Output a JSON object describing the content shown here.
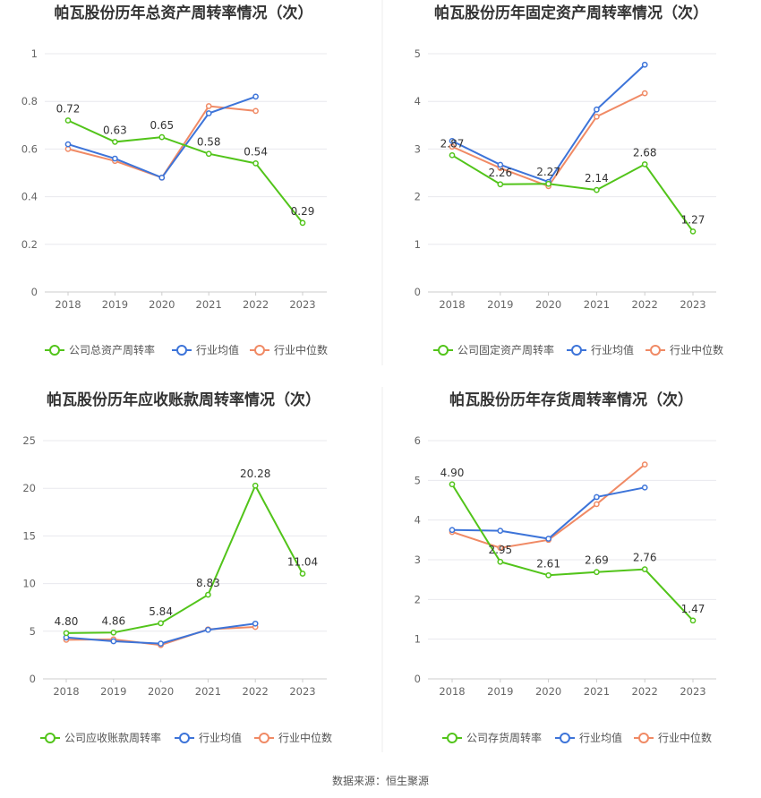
{
  "source": "数据来源：恒生聚源",
  "chart_data": [
    {
      "type": "line",
      "title": "帕瓦股份历年总资产周转率情况（次）",
      "categories": [
        "2018",
        "2019",
        "2020",
        "2021",
        "2022",
        "2023"
      ],
      "ylim": [
        0,
        1
      ],
      "yticks": [
        "0",
        "0.2",
        "0.4",
        "0.6",
        "0.8",
        "1"
      ],
      "grid": true,
      "legend": "bottom",
      "series": [
        {
          "name": "公司总资产周转率",
          "color": "#52c41a",
          "values": [
            0.72,
            0.63,
            0.65,
            0.58,
            0.54,
            0.29
          ],
          "labels": [
            "0.72",
            "0.63",
            "0.65",
            "0.58",
            "0.54",
            "0.29"
          ]
        },
        {
          "name": "行业均值",
          "color": "#3d74d9",
          "values": [
            0.62,
            0.56,
            0.48,
            0.75,
            0.82,
            null
          ]
        },
        {
          "name": "行业中位数",
          "color": "#f08a65",
          "values": [
            0.6,
            0.55,
            0.48,
            0.78,
            0.76,
            null
          ]
        }
      ]
    },
    {
      "type": "line",
      "title": "帕瓦股份历年固定资产周转率情况（次）",
      "categories": [
        "2018",
        "2019",
        "2020",
        "2021",
        "2022",
        "2023"
      ],
      "ylim": [
        0,
        5
      ],
      "yticks": [
        "0",
        "1",
        "2",
        "3",
        "4",
        "5"
      ],
      "grid": true,
      "legend": "bottom",
      "series": [
        {
          "name": "公司固定资产周转率",
          "color": "#52c41a",
          "values": [
            2.87,
            2.26,
            2.27,
            2.14,
            2.68,
            1.27
          ],
          "labels": [
            "2.87",
            "2.26",
            "2.27",
            "2.14",
            "2.68",
            "1.27"
          ]
        },
        {
          "name": "行业均值",
          "color": "#3d74d9",
          "values": [
            3.17,
            2.67,
            2.31,
            3.83,
            4.77,
            null
          ]
        },
        {
          "name": "行业中位数",
          "color": "#f08a65",
          "values": [
            3.05,
            2.6,
            2.22,
            3.68,
            4.17,
            null
          ]
        }
      ]
    },
    {
      "type": "line",
      "title": "帕瓦股份历年应收账款周转率情况（次）",
      "categories": [
        "2018",
        "2019",
        "2020",
        "2021",
        "2022",
        "2023"
      ],
      "ylim": [
        0,
        25
      ],
      "yticks": [
        "0",
        "5",
        "10",
        "15",
        "20",
        "25"
      ],
      "grid": true,
      "legend": "bottom",
      "series": [
        {
          "name": "公司应收账款周转率",
          "color": "#52c41a",
          "values": [
            4.8,
            4.86,
            5.84,
            8.83,
            20.28,
            11.04
          ],
          "labels": [
            "4.80",
            "4.86",
            "5.84",
            "8.83",
            "20.28",
            "11.04"
          ]
        },
        {
          "name": "行业均值",
          "color": "#3d74d9",
          "values": [
            4.35,
            3.95,
            3.7,
            5.15,
            5.8,
            null
          ]
        },
        {
          "name": "行业中位数",
          "color": "#f08a65",
          "values": [
            4.1,
            4.15,
            3.55,
            5.2,
            5.45,
            null
          ]
        }
      ]
    },
    {
      "type": "line",
      "title": "帕瓦股份历年存货周转率情况（次）",
      "categories": [
        "2018",
        "2019",
        "2020",
        "2021",
        "2022",
        "2023"
      ],
      "ylim": [
        0,
        6
      ],
      "yticks": [
        "0",
        "1",
        "2",
        "3",
        "4",
        "5",
        "6"
      ],
      "grid": true,
      "legend": "bottom",
      "series": [
        {
          "name": "公司存货周转率",
          "color": "#52c41a",
          "values": [
            4.9,
            2.95,
            2.61,
            2.69,
            2.76,
            1.47
          ],
          "labels": [
            "4.90",
            "2.95",
            "2.61",
            "2.69",
            "2.76",
            "1.47"
          ]
        },
        {
          "name": "行业均值",
          "color": "#3d74d9",
          "values": [
            3.75,
            3.73,
            3.53,
            4.58,
            4.82,
            null
          ]
        },
        {
          "name": "行业中位数",
          "color": "#f08a65",
          "values": [
            3.7,
            3.3,
            3.5,
            4.4,
            5.4,
            null
          ]
        }
      ]
    }
  ]
}
